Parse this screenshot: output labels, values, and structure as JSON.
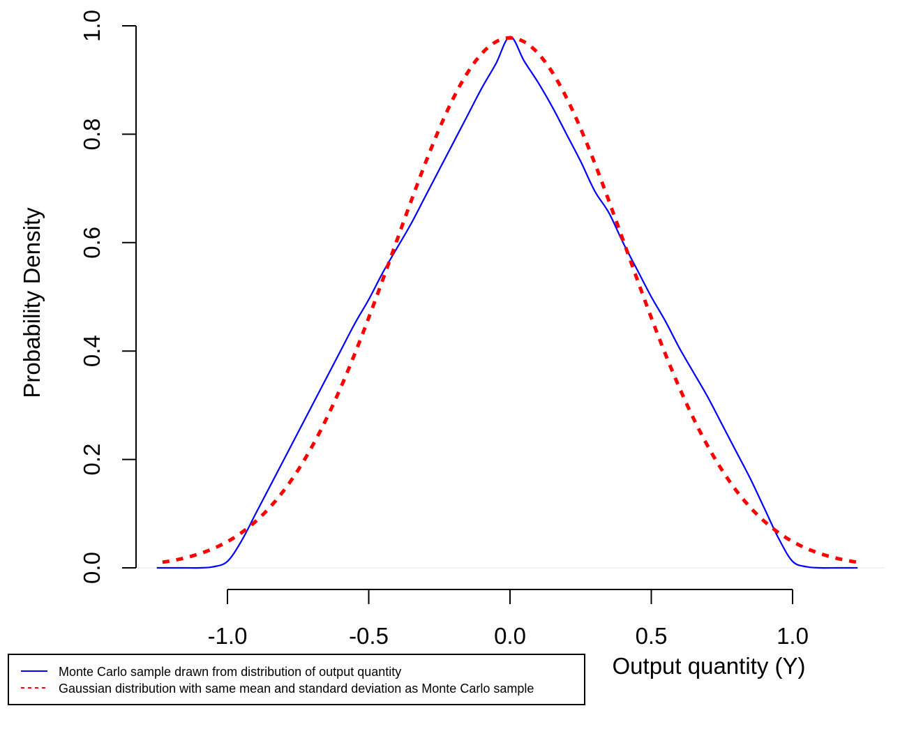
{
  "chart_data": {
    "type": "line",
    "title": "",
    "xlabel": "Output quantity (Y)",
    "ylabel": "Probability Density",
    "xlim": [
      -1.25,
      1.25
    ],
    "ylim": [
      0,
      1.0
    ],
    "x_ticks": [
      -1.0,
      -0.5,
      0.0,
      0.5,
      1.0
    ],
    "x_tick_labels": [
      "-1.0",
      "-0.5",
      "0.0",
      "0.5",
      "1.0"
    ],
    "y_ticks": [
      0.0,
      0.2,
      0.4,
      0.6,
      0.8,
      1.0
    ],
    "y_tick_labels": [
      "0.0",
      "0.2",
      "0.4",
      "0.6",
      "0.8",
      "1.0"
    ],
    "grid": false,
    "legend_position": "bottom-left",
    "series": [
      {
        "name": "Monte Carlo sample drawn from distribution of output quantity",
        "color": "#0000ff",
        "style": "solid",
        "x": [
          -1.25,
          -1.2,
          -1.15,
          -1.1,
          -1.05,
          -1.0,
          -0.95,
          -0.9,
          -0.85,
          -0.8,
          -0.75,
          -0.7,
          -0.65,
          -0.6,
          -0.55,
          -0.5,
          -0.45,
          -0.4,
          -0.35,
          -0.3,
          -0.25,
          -0.2,
          -0.15,
          -0.1,
          -0.05,
          0.0,
          0.05,
          0.1,
          0.15,
          0.2,
          0.25,
          0.3,
          0.35,
          0.4,
          0.45,
          0.5,
          0.55,
          0.6,
          0.65,
          0.7,
          0.75,
          0.8,
          0.85,
          0.9,
          0.95,
          1.0,
          1.05,
          1.1,
          1.15,
          1.2,
          1.23
        ],
        "y": [
          0,
          0,
          0,
          0,
          0.002,
          0.012,
          0.05,
          0.1,
          0.15,
          0.2,
          0.25,
          0.3,
          0.35,
          0.4,
          0.45,
          0.495,
          0.545,
          0.59,
          0.635,
          0.685,
          0.735,
          0.785,
          0.835,
          0.885,
          0.93,
          0.98,
          0.935,
          0.895,
          0.85,
          0.8,
          0.75,
          0.695,
          0.655,
          0.6,
          0.55,
          0.5,
          0.455,
          0.405,
          0.36,
          0.315,
          0.265,
          0.215,
          0.165,
          0.11,
          0.055,
          0.012,
          0.002,
          0,
          0,
          0,
          0
        ]
      },
      {
        "name": "Gaussian distribution with same mean and standard deviation as Monte Carlo sample",
        "color": "#ff0000",
        "style": "dashed",
        "mean": 0.0,
        "sd": 0.408,
        "x_range": [
          -1.23,
          1.23
        ]
      }
    ]
  }
}
